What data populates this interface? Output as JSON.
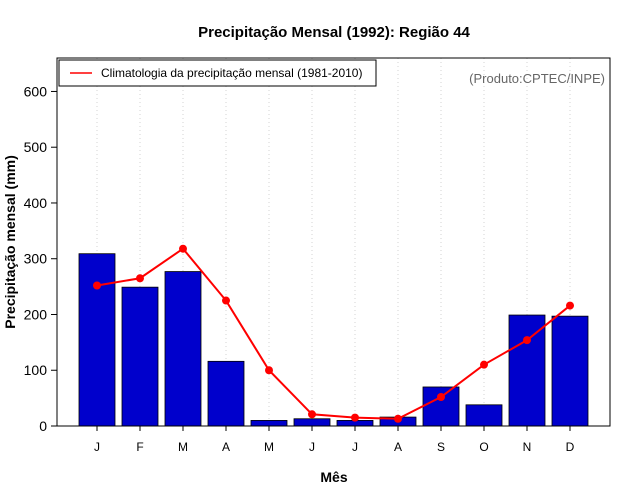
{
  "chart_data": {
    "type": "bar",
    "title": "Precipitação Mensal (1992): Região 44",
    "xlabel": "Mês",
    "ylabel": "Precipitação mensal (mm)",
    "source_note": "(Produto:CPTEC/INPE)",
    "categories": [
      "J",
      "F",
      "M",
      "A",
      "M",
      "J",
      "J",
      "A",
      "S",
      "O",
      "N",
      "D"
    ],
    "ylim": [
      0,
      660
    ],
    "yticks": [
      0,
      100,
      200,
      300,
      400,
      500,
      600
    ],
    "series": [
      {
        "name": "Precipitação mensal (1992)",
        "kind": "bar",
        "color": "#0000cc",
        "values": [
          309,
          249,
          277,
          116,
          10,
          13,
          10,
          16,
          70,
          38,
          199,
          197
        ]
      },
      {
        "name": "Climatologia da precipitação mensal (1981-2010)",
        "kind": "line",
        "color": "#ff0000",
        "values": [
          252,
          265,
          318,
          225,
          100,
          21,
          15,
          13,
          52,
          110,
          154,
          216
        ]
      }
    ],
    "legend": {
      "position": "top-left",
      "entries": [
        "Climatologia da precipitação mensal (1981-2010)"
      ]
    },
    "grid": "vertical-dotted"
  }
}
